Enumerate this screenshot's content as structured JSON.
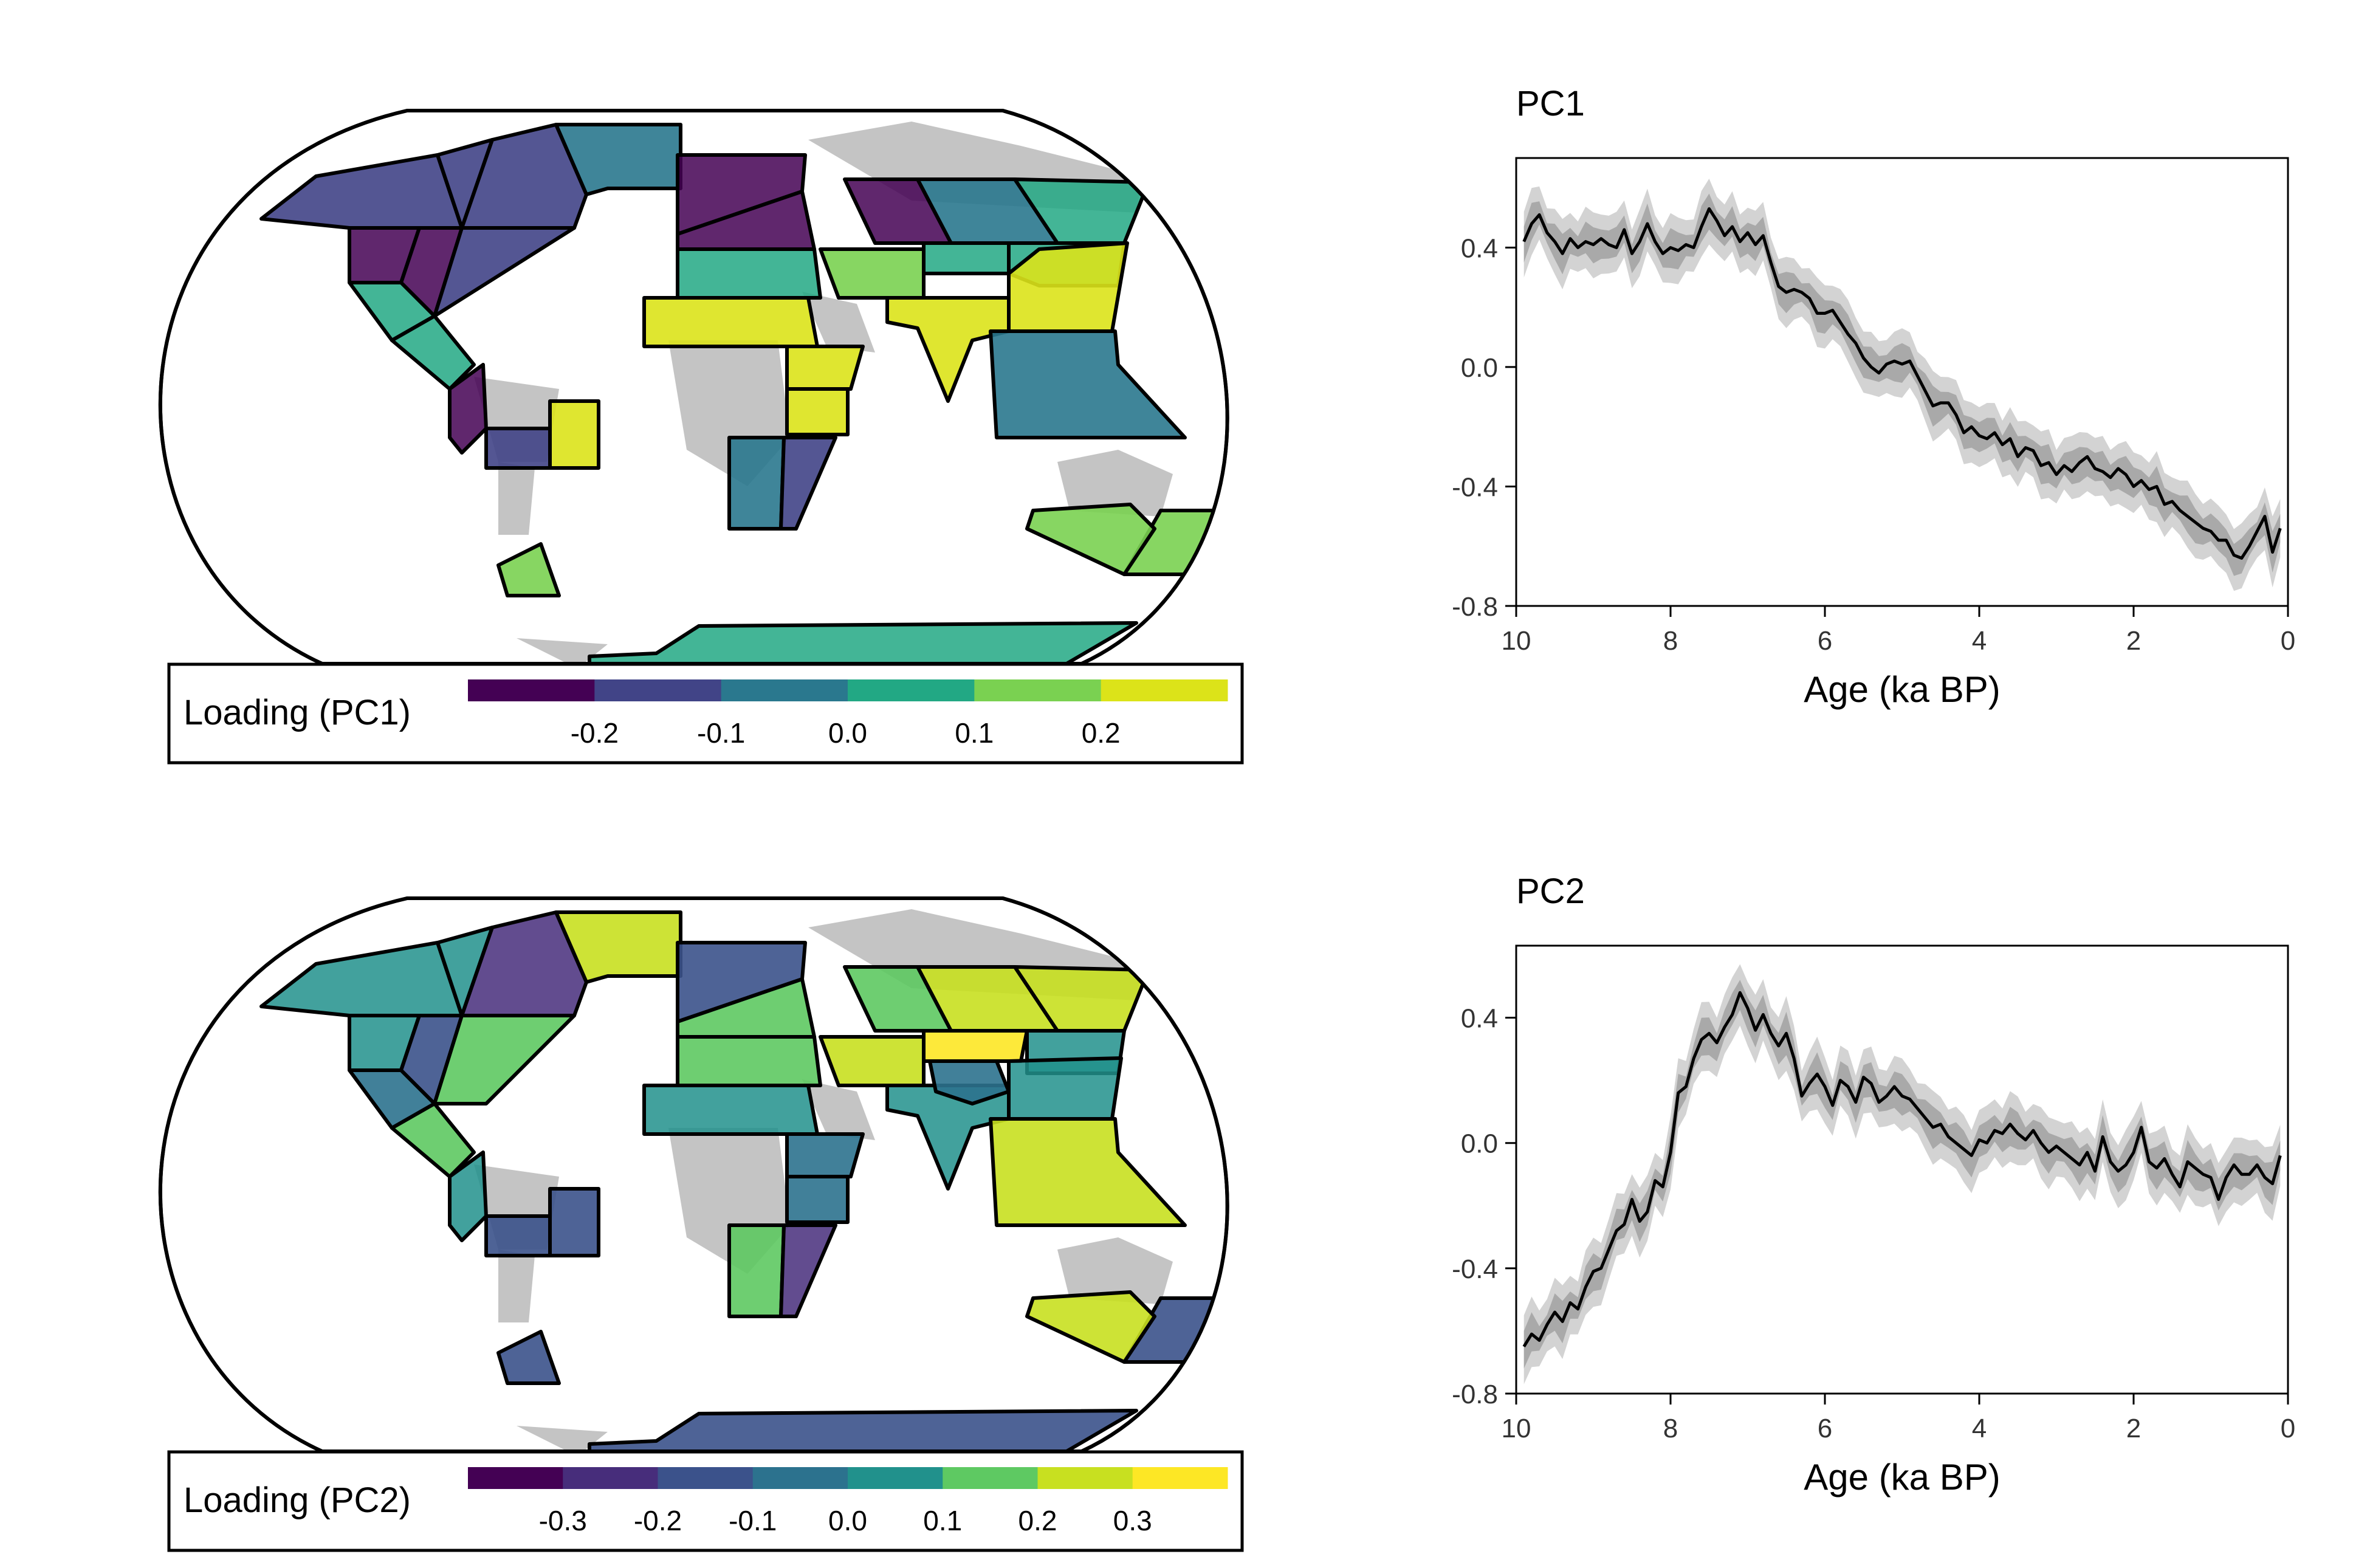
{
  "maps": [
    {
      "legend_title": "Loading (PC1)",
      "colorbar_colors": [
        "#440154",
        "#3b528b",
        "#2c728e",
        "#21918c",
        "#5ec962",
        "#c8e020",
        "#fde725"
      ],
      "pc1_bins": [
        "#440154",
        "#414487",
        "#2a788e",
        "#22a884",
        "#7ad151",
        "#dce319"
      ],
      "tick_labels": [
        "-0.2",
        "-0.1",
        "0.0",
        "0.1",
        "0.2"
      ]
    },
    {
      "legend_title": "Loading (PC2)",
      "pc2_bins": [
        "#440154",
        "#472d7b",
        "#3b528b",
        "#2c728e",
        "#21918c",
        "#5ec962",
        "#c8e020",
        "#fde725"
      ],
      "tick_labels": [
        "-0.3",
        "-0.2",
        "-0.1",
        "0.0",
        "0.1",
        "0.2",
        "0.3"
      ]
    }
  ],
  "chart_data": [
    {
      "type": "line",
      "title": "PC1",
      "xlabel": "Age (ka BP)",
      "ylabel": "",
      "xlim": [
        10,
        0
      ],
      "ylim": [
        -0.8,
        0.7
      ],
      "xticks": [
        "10",
        "8",
        "6",
        "4",
        "2",
        "0"
      ],
      "yticks": [
        "0.4",
        "0.0",
        "-0.4",
        "-0.8"
      ],
      "series": [
        {
          "x": [
            9.9,
            9.8,
            9.7,
            9.6,
            9.5,
            9.4,
            9.3,
            9.2,
            9.1,
            9.0,
            8.9,
            8.8,
            8.7,
            8.6,
            8.5,
            8.4,
            8.3,
            8.2,
            8.1,
            8.0,
            7.9,
            7.8,
            7.7,
            7.6,
            7.5,
            7.4,
            7.3,
            7.2,
            7.1,
            7.0,
            6.9,
            6.8,
            6.7,
            6.6,
            6.5,
            6.4,
            6.3,
            6.2,
            6.1,
            6.0,
            5.9,
            5.8,
            5.7,
            5.6,
            5.5,
            5.4,
            5.3,
            5.2,
            5.1,
            5.0,
            4.9,
            4.8,
            4.7,
            4.6,
            4.5,
            4.4,
            4.3,
            4.2,
            4.1,
            4.0,
            3.9,
            3.8,
            3.7,
            3.6,
            3.5,
            3.4,
            3.3,
            3.2,
            3.1,
            3.0,
            2.9,
            2.8,
            2.7,
            2.6,
            2.5,
            2.4,
            2.3,
            2.2,
            2.1,
            2.0,
            1.9,
            1.8,
            1.7,
            1.6,
            1.5,
            1.4,
            1.3,
            1.2,
            1.1,
            1.0,
            0.9,
            0.8,
            0.7,
            0.6,
            0.5,
            0.4,
            0.3,
            0.2,
            0.1
          ],
          "y": [
            0.42,
            0.48,
            0.51,
            0.45,
            0.42,
            0.38,
            0.43,
            0.4,
            0.42,
            0.41,
            0.43,
            0.41,
            0.4,
            0.46,
            0.38,
            0.42,
            0.48,
            0.42,
            0.38,
            0.4,
            0.39,
            0.41,
            0.4,
            0.47,
            0.53,
            0.49,
            0.44,
            0.47,
            0.42,
            0.45,
            0.41,
            0.44,
            0.35,
            0.27,
            0.25,
            0.26,
            0.25,
            0.23,
            0.18,
            0.18,
            0.19,
            0.15,
            0.11,
            0.08,
            0.03,
            0.0,
            -0.02,
            0.01,
            0.02,
            0.01,
            0.02,
            -0.03,
            -0.08,
            -0.13,
            -0.12,
            -0.12,
            -0.16,
            -0.22,
            -0.2,
            -0.23,
            -0.24,
            -0.22,
            -0.26,
            -0.24,
            -0.3,
            -0.27,
            -0.28,
            -0.33,
            -0.32,
            -0.36,
            -0.33,
            -0.35,
            -0.32,
            -0.3,
            -0.34,
            -0.35,
            -0.37,
            -0.34,
            -0.36,
            -0.4,
            -0.38,
            -0.41,
            -0.4,
            -0.46,
            -0.45,
            -0.48,
            -0.5,
            -0.52,
            -0.54,
            -0.55,
            -0.58,
            -0.58,
            -0.63,
            -0.64,
            -0.6,
            -0.55,
            -0.5,
            -0.62,
            -0.54
          ]
        }
      ]
    },
    {
      "type": "line",
      "title": "PC2",
      "xlabel": "Age (ka BP)",
      "ylabel": "",
      "xlim": [
        10,
        0
      ],
      "ylim": [
        -0.8,
        0.63
      ],
      "xticks": [
        "10",
        "8",
        "6",
        "4",
        "2",
        "0"
      ],
      "yticks": [
        "0.4",
        "0.0",
        "-0.4",
        "-0.8"
      ],
      "series": [
        {
          "x": [
            9.9,
            9.8,
            9.7,
            9.6,
            9.5,
            9.4,
            9.3,
            9.2,
            9.1,
            9.0,
            8.9,
            8.8,
            8.7,
            8.6,
            8.5,
            8.4,
            8.3,
            8.2,
            8.1,
            8.0,
            7.9,
            7.8,
            7.7,
            7.6,
            7.5,
            7.4,
            7.3,
            7.2,
            7.1,
            7.0,
            6.9,
            6.8,
            6.7,
            6.6,
            6.5,
            6.4,
            6.3,
            6.2,
            6.1,
            6.0,
            5.9,
            5.8,
            5.7,
            5.6,
            5.5,
            5.4,
            5.3,
            5.2,
            5.1,
            5.0,
            4.9,
            4.8,
            4.7,
            4.6,
            4.5,
            4.4,
            4.3,
            4.2,
            4.1,
            4.0,
            3.9,
            3.8,
            3.7,
            3.6,
            3.5,
            3.4,
            3.3,
            3.2,
            3.1,
            3.0,
            2.9,
            2.8,
            2.7,
            2.6,
            2.5,
            2.4,
            2.3,
            2.2,
            2.1,
            2.0,
            1.9,
            1.8,
            1.7,
            1.6,
            1.5,
            1.4,
            1.3,
            1.2,
            1.1,
            1.0,
            0.9,
            0.8,
            0.7,
            0.6,
            0.5,
            0.4,
            0.3,
            0.2,
            0.1
          ],
          "y": [
            -0.65,
            -0.61,
            -0.63,
            -0.58,
            -0.54,
            -0.57,
            -0.51,
            -0.53,
            -0.46,
            -0.41,
            -0.4,
            -0.34,
            -0.28,
            -0.26,
            -0.18,
            -0.25,
            -0.22,
            -0.12,
            -0.14,
            -0.03,
            0.16,
            0.18,
            0.27,
            0.33,
            0.35,
            0.32,
            0.37,
            0.41,
            0.48,
            0.43,
            0.36,
            0.41,
            0.35,
            0.31,
            0.35,
            0.27,
            0.15,
            0.19,
            0.22,
            0.18,
            0.12,
            0.2,
            0.18,
            0.13,
            0.21,
            0.19,
            0.13,
            0.15,
            0.18,
            0.15,
            0.14,
            0.11,
            0.08,
            0.05,
            0.06,
            0.02,
            0.0,
            -0.02,
            -0.04,
            0.01,
            0.0,
            0.04,
            0.03,
            0.06,
            0.03,
            0.01,
            0.04,
            0.0,
            -0.03,
            -0.01,
            -0.03,
            -0.05,
            -0.07,
            -0.03,
            -0.09,
            0.02,
            -0.06,
            -0.09,
            -0.07,
            -0.03,
            0.05,
            -0.06,
            -0.08,
            -0.05,
            -0.1,
            -0.14,
            -0.06,
            -0.08,
            -0.1,
            -0.11,
            -0.18,
            -0.11,
            -0.07,
            -0.1,
            -0.1,
            -0.07,
            -0.11,
            -0.13,
            -0.04
          ]
        }
      ]
    }
  ]
}
